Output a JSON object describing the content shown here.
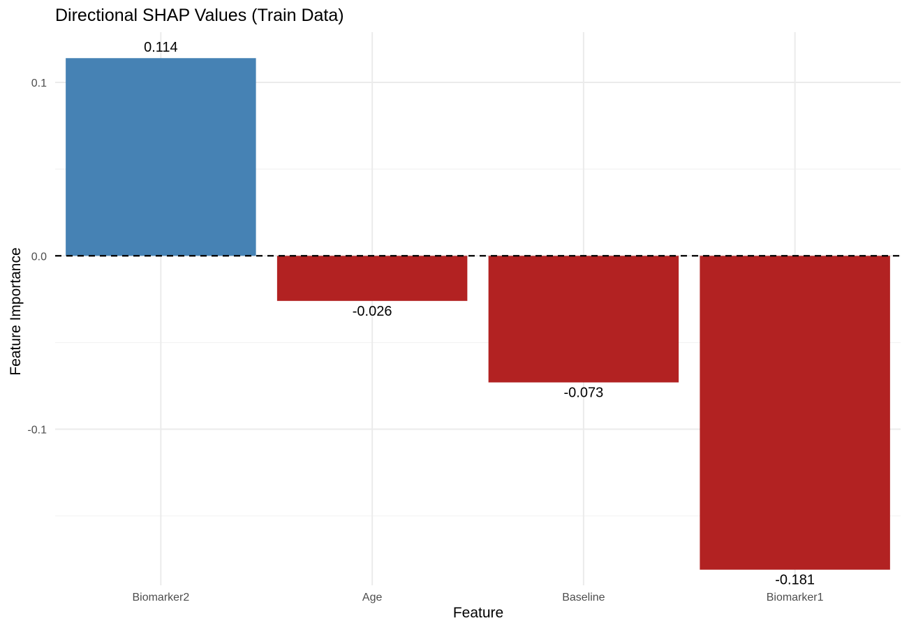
{
  "chart_data": {
    "type": "bar",
    "title": "Directional SHAP Values (Train Data)",
    "xlabel": "Feature",
    "ylabel": "Feature Importance",
    "categories": [
      "Biomarker2",
      "Age",
      "Baseline",
      "Biomarker1"
    ],
    "values": [
      0.114,
      -0.026,
      -0.073,
      -0.181
    ],
    "value_labels": [
      "0.114",
      "-0.026",
      "-0.073",
      "-0.181"
    ],
    "ylim": [
      -0.19,
      0.129
    ],
    "yticks": [
      0.1,
      0.0,
      -0.1
    ],
    "ytick_labels": [
      "0.1",
      "0.0",
      "-0.1"
    ],
    "yminor": [
      0.05,
      -0.05,
      -0.15
    ],
    "reference_line": 0.0,
    "grid": true,
    "legend": "none",
    "colors": {
      "positive": "#4682B4",
      "negative": "#B22222",
      "grid": "#EBEBEB",
      "reference_line": "#000000"
    }
  }
}
